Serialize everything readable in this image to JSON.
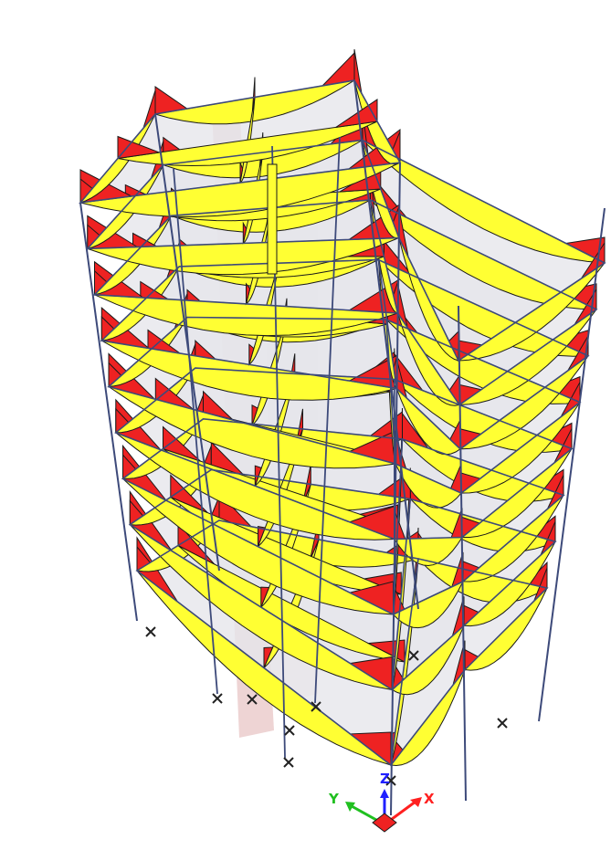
{
  "view": {
    "kind": "3D frame model - moment diagram",
    "stories": 9,
    "colors": {
      "background": "#ffffff",
      "frame": "#3d4a7a",
      "slab": "#e6e6ea",
      "slab_edge": "#ffffff",
      "positive_moment": "#ffff33",
      "negative_moment": "#ee2222",
      "diagram_outline": "#1a1a1a",
      "shear_wall": "#d9a0a0"
    }
  },
  "axes_triad": {
    "x_label": "X",
    "y_label": "Y",
    "z_label": "Z",
    "x_color": "#ff2020",
    "y_color": "#20c020",
    "z_color": "#2020ff"
  }
}
